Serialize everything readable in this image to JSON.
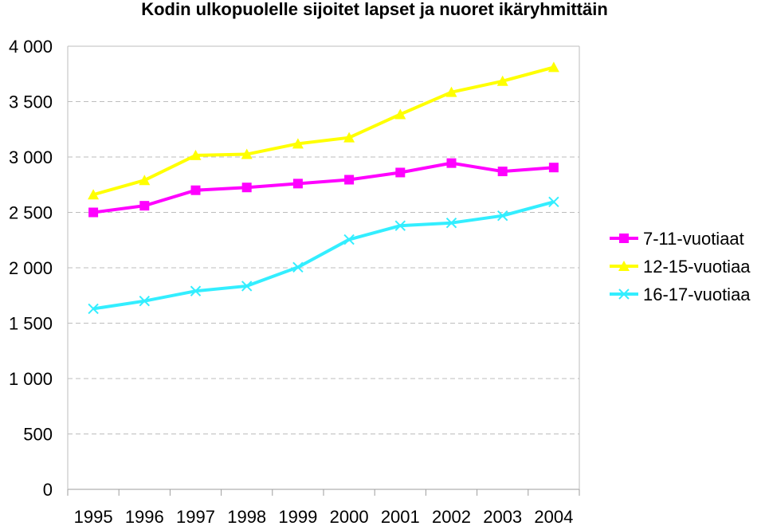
{
  "chart_data": {
    "type": "line",
    "title": "Kodin ulkopuolelle sijoitet lapset ja nuoret ikäryhmittäin",
    "xlabel": "",
    "ylabel": "",
    "categories": [
      "1995",
      "1996",
      "1997",
      "1998",
      "1999",
      "2000",
      "2001",
      "2002",
      "2003",
      "2004"
    ],
    "ylim": [
      0,
      4000
    ],
    "yticks": [
      0,
      500,
      1000,
      1500,
      2000,
      2500,
      3000,
      3500,
      4000
    ],
    "ytick_labels": [
      "0",
      "500",
      "1 000",
      "1 500",
      "2 000",
      "2 500",
      "3 000",
      "3 500",
      "4 000"
    ],
    "grid": "horizontal dashed",
    "legend_position": "right",
    "series": [
      {
        "name": "7-11-vuotiaat",
        "color": "#ff00ff",
        "marker": "square",
        "values": [
          2500,
          2560,
          2700,
          2725,
          2760,
          2795,
          2860,
          2945,
          2870,
          2905
        ]
      },
      {
        "name": "12-15-vuotiaa",
        "color": "#ffff00",
        "marker": "triangle",
        "values": [
          2660,
          2790,
          3015,
          3025,
          3120,
          3175,
          3385,
          3585,
          3685,
          3810
        ]
      },
      {
        "name": "16-17-vuotiaa",
        "color": "#33eeff",
        "marker": "x",
        "values": [
          1630,
          1700,
          1790,
          1835,
          2005,
          2255,
          2380,
          2405,
          2470,
          2595
        ]
      }
    ]
  }
}
